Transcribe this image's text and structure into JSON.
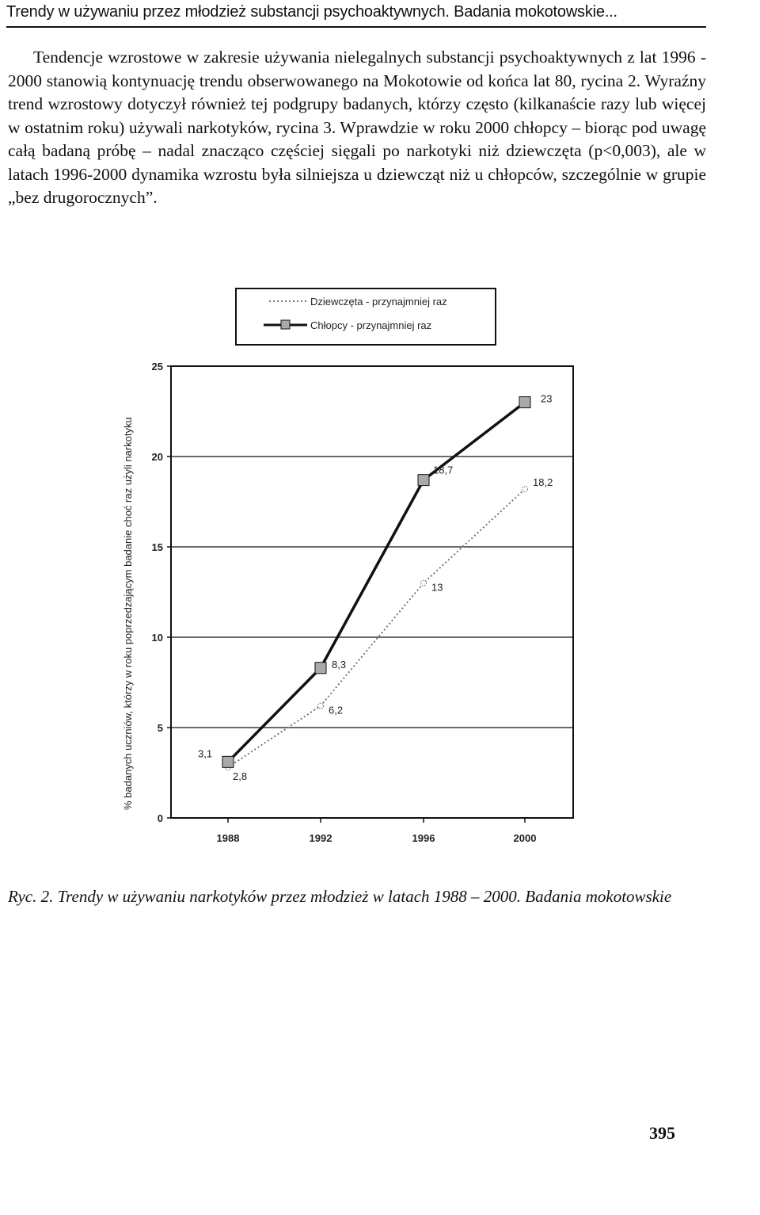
{
  "header": {
    "running_title": "Trendy w używaniu przez młodzież substancji psychoaktywnych. Badania mokotowskie..."
  },
  "paragraph": "Tendencje wzrostowe w zakresie używania nielegalnych substancji psychoaktywnych z lat 1996 - 2000 stanowią kontynuację trendu obserwowanego na Mokotowie od końca lat 80, rycina 2. Wyraźny trend wzrostowy dotyczył również tej podgrupy badanych, którzy często (kilkanaście razy lub więcej w ostatnim roku) używali narkotyków, rycina 3. Wprawdzie w roku 2000 chłopcy – biorąc pod uwagę całą badaną próbę – nadal znacząco częściej sięgali po narkotyki niż dziewczęta (p<0,003), ale w latach 1996-2000 dynamika wzrostu była silniejsza u dziewcząt niż u chłopców, szczególnie w grupie „bez drugorocznych”.",
  "chart_data": {
    "type": "line",
    "x": [
      "1988",
      "1992",
      "1996",
      "2000"
    ],
    "series": [
      {
        "name": "Dziewczęta - przynajmniej raz",
        "values": [
          2.8,
          6.2,
          13,
          18.2
        ],
        "labels": [
          "2,8",
          "6,2",
          "13",
          "18,2"
        ],
        "style": "dotted",
        "color": "#777777"
      },
      {
        "name": "Chłopcy - przynajmniej raz",
        "values": [
          3.1,
          8.3,
          18.7,
          23
        ],
        "labels": [
          "3,1",
          "8,3",
          "18,7",
          "23"
        ],
        "style": "solid",
        "color": "#111111"
      }
    ],
    "ylabel": "% badanych uczniów, którzy w roku poprzedzającym badanie choć raz użyli narkotyku",
    "ylim": [
      0,
      25
    ],
    "yticks": [
      "0",
      "5",
      "10",
      "15",
      "20",
      "25"
    ],
    "grid": true,
    "legend_position": "top"
  },
  "caption": "Ryc. 2. Trendy w używaniu narkotyków przez młodzież w latach 1988 – 2000. Badania mokotowskie",
  "page_number": "395"
}
